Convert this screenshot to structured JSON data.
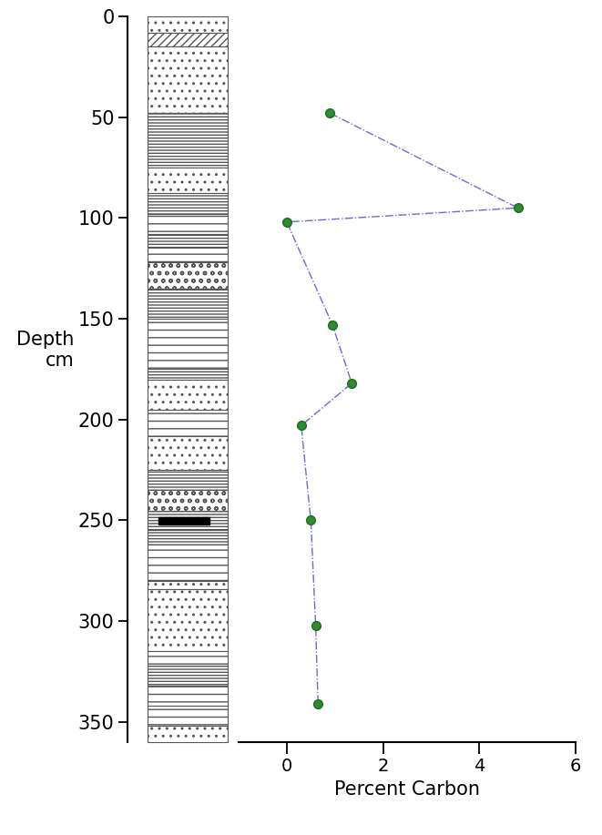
{
  "chart_data": {
    "type": "line",
    "x_label": "Percent Carbon",
    "y_label": "Depth\ncm",
    "x": [
      0.9,
      4.8,
      0.0,
      0.95,
      1.35,
      0.3,
      0.5,
      0.6,
      0.65
    ],
    "y": [
      48,
      95,
      102,
      153,
      182,
      203,
      250,
      302,
      341
    ],
    "color": "#2e8b2e",
    "marker": "o",
    "line_style": "dashdot",
    "xlim": [
      -1,
      6
    ],
    "xticks": [
      0,
      2,
      4,
      6
    ],
    "ylim": [
      360,
      0
    ],
    "yticks": [
      0,
      50,
      100,
      150,
      200,
      250,
      300,
      350
    ]
  }
}
